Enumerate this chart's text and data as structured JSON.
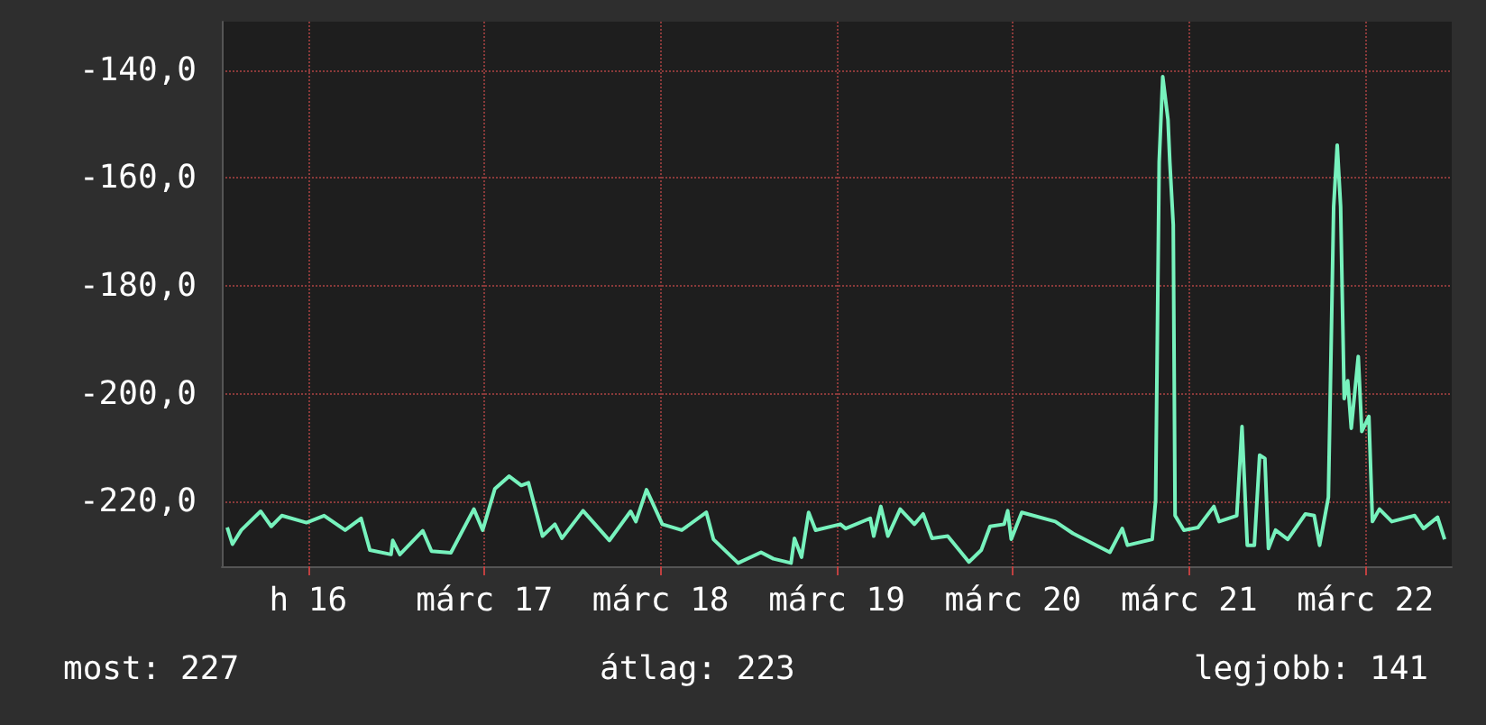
{
  "chart_data": {
    "type": "line",
    "xlim": [
      "--03-15T12:14",
      "--03-22T11:46"
    ],
    "xticks": [
      {
        "value": "--03-16",
        "label": "h 16"
      },
      {
        "value": "--03-17",
        "label": "márc 17"
      },
      {
        "value": "--03-18",
        "label": "márc 18"
      },
      {
        "value": "--03-19",
        "label": "márc 19"
      },
      {
        "value": "--03-20",
        "label": "márc 20"
      },
      {
        "value": "--03-21",
        "label": "márc 21"
      },
      {
        "value": "--03-22",
        "label": "márc 22"
      }
    ],
    "ylim": [
      -232,
      -131
    ],
    "yticks": [
      {
        "value": -220,
        "label": "-220,0"
      },
      {
        "value": -200,
        "label": "-200,0"
      },
      {
        "value": -180,
        "label": "-180,0"
      },
      {
        "value": -160,
        "label": "-160,0"
      },
      {
        "value": -140,
        "label": "-140,0"
      }
    ],
    "grid": true,
    "marker": "none",
    "line_style": "solid",
    "annotations": [
      "most: 227",
      "átlag: 223",
      "legjobb: 141"
    ],
    "series": [
      {
        "color": "#77f2bd",
        "x": [
          "--03-15T12:58",
          "--03-15T13:41",
          "--03-15T14:53",
          "--03-15T17:31",
          "--03-15T18:58",
          "--03-15T20:24",
          "--03-15T23:46",
          "--03-16T02:10",
          "--03-16T05:02",
          "--03-16T07:12",
          "--03-16T08:24",
          "--03-16T11:17",
          "--03-16T11:31",
          "--03-16T12:29",
          "--03-16T15:36",
          "--03-16T16:48",
          "--03-16T19:26",
          "--03-16T22:34",
          "--03-16T23:46",
          "--03-17T01:26",
          "--03-17T03:22",
          "--03-17T05:02",
          "--03-17T06:00",
          "--03-17T07:55",
          "--03-17T09:36",
          "--03-17T10:34",
          "--03-17T13:26",
          "--03-17T17:02",
          "--03-17T19:55",
          "--03-17T20:38",
          "--03-17T22:05",
          "--03-18T00:14",
          "--03-18T02:53",
          "--03-18T06:14",
          "--03-18T07:12",
          "--03-18T10:34",
          "--03-18T13:41",
          "--03-18T15:22",
          "--03-18T17:46",
          "--03-18T18:14",
          "--03-18T19:12",
          "--03-18T20:10",
          "--03-18T21:07",
          "--03-19T00:29",
          "--03-19T01:12",
          "--03-19T04:34",
          "--03-19T05:02",
          "--03-19T06:00",
          "--03-19T06:58",
          "--03-19T08:38",
          "--03-19T10:34",
          "--03-19T11:46",
          "--03-19T12:58",
          "--03-19T15:07",
          "--03-19T18:00",
          "--03-19T19:41",
          "--03-19T20:53",
          "--03-19T22:48",
          "--03-19T23:17",
          "--03-19T23:46",
          "--03-20T01:12",
          "--03-20T05:46",
          "--03-20T08:10",
          "--03-20T13:12",
          "--03-20T14:53",
          "--03-20T15:36",
          "--03-20T18:58",
          "--03-20T19:26",
          "--03-20T19:55",
          "--03-20T20:24",
          "--03-20T21:07",
          "--03-20T21:22",
          "--03-20T21:50",
          "--03-20T22:05",
          "--03-20T23:17",
          "--03-21T01:12",
          "--03-21T03:22",
          "--03-21T04:05",
          "--03-21T06:29",
          "--03-21T07:12",
          "--03-21T07:55",
          "--03-21T08:53",
          "--03-21T09:36",
          "--03-21T10:19",
          "--03-21T10:48",
          "--03-21T11:46",
          "--03-21T13:26",
          "--03-21T15:50",
          "--03-21T17:02",
          "--03-21T17:46",
          "--03-21T18:58",
          "--03-21T19:41",
          "--03-21T20:10",
          "--03-21T20:38",
          "--03-21T21:07",
          "--03-21T21:36",
          "--03-21T22:05",
          "--03-21T23:02",
          "--03-21T23:31",
          "--03-22T00:29",
          "--03-22T00:58",
          "--03-22T01:55",
          "--03-22T03:36",
          "--03-22T06:43",
          "--03-22T07:55",
          "--03-22T09:50",
          "--03-22T10:48"
        ],
        "values": [
          -224.8,
          -227.9,
          -225.3,
          -221.8,
          -224.6,
          -222.6,
          -223.9,
          -222.6,
          -225.3,
          -223.1,
          -229,
          -229.8,
          -227.2,
          -229.8,
          -225.4,
          -229.2,
          -229.5,
          -221.4,
          -225.3,
          -217.6,
          -215.3,
          -217,
          -216.5,
          -226.4,
          -224.2,
          -226.8,
          -221.7,
          -227.2,
          -221.8,
          -223.7,
          -217.8,
          -224.2,
          -225.3,
          -222,
          -227,
          -231.4,
          -229.4,
          -230.6,
          -231.4,
          -226.8,
          -230.3,
          -222,
          -225.3,
          -224.2,
          -225,
          -223.1,
          -226.4,
          -220.9,
          -226.4,
          -221.4,
          -224.2,
          -222.3,
          -226.8,
          -226.4,
          -231.2,
          -229,
          -224.6,
          -224.2,
          -221.7,
          -227,
          -222,
          -223.7,
          -225.9,
          -229.4,
          -225,
          -228.1,
          -227,
          -219.8,
          -157,
          -141.2,
          -149.2,
          -157,
          -168.7,
          -222.6,
          -225.3,
          -224.8,
          -220.9,
          -223.7,
          -222.6,
          -206.1,
          -228.1,
          -228.1,
          -211.4,
          -212,
          -228.7,
          -225.3,
          -227,
          -222.3,
          -222.6,
          -228.1,
          -219.2,
          -165.3,
          -153.9,
          -165.3,
          -200.9,
          -197.6,
          -206.4,
          -193.1,
          -207,
          -204.2,
          -223.7,
          -221.4,
          -223.7,
          -222.6,
          -225,
          -222.9,
          -227
        ]
      }
    ]
  }
}
